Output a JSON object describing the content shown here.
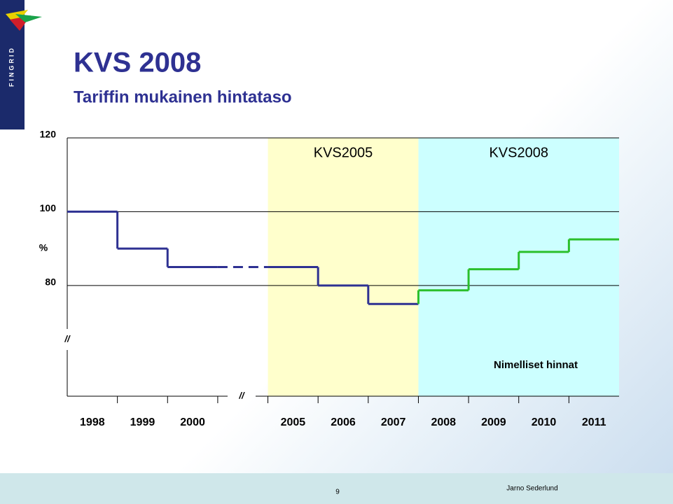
{
  "logo_text": "FINGRID",
  "footer": {
    "page_number": "9",
    "author": "Jarno Sederlund"
  },
  "chart_data": {
    "type": "step",
    "title": "KVS 2008",
    "subtitle": "Tariffin mukainen hintataso",
    "y_axis_label": "%",
    "axis_break_label": "//",
    "annotation": "Nimelliset hinnat",
    "categories": [
      "1998",
      "1999",
      "2000",
      null,
      "2005",
      "2006",
      "2007",
      "2008",
      "2009",
      "2010",
      "2011"
    ],
    "series": [
      {
        "color": "#2e3192",
        "values": [
          100,
          90,
          85,
          85,
          85,
          80,
          75,
          null,
          null,
          null,
          null
        ],
        "dashed_indices": [
          3
        ]
      },
      {
        "color": "#2bbf2b",
        "values": [
          null,
          null,
          null,
          null,
          null,
          null,
          null,
          78.7,
          84.4,
          89.1,
          92.5
        ]
      }
    ],
    "periods": [
      {
        "label": "KVS2005",
        "from": "2005",
        "to": "2007",
        "color": "#ffffcc"
      },
      {
        "label": "KVS2008",
        "from": "2008",
        "to": "2011",
        "color": "#ccffff"
      }
    ],
    "ylim": [
      50,
      120
    ],
    "yticks": [
      80,
      100,
      120
    ],
    "grid": true
  }
}
